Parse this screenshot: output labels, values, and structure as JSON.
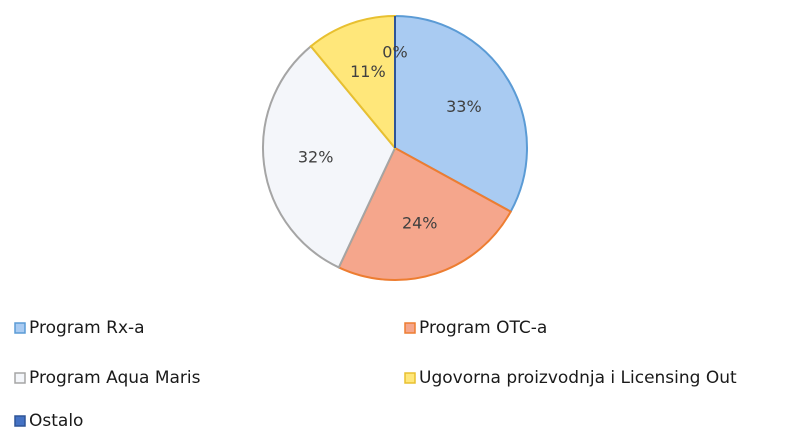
{
  "chart_data": {
    "type": "pie",
    "categories": [
      "Program Rx-a",
      "Program OTC-a",
      "Program Aqua Maris",
      "Ugovorna proizvodnja i Licensing Out",
      "Ostalo"
    ],
    "values": [
      33,
      24,
      32,
      11,
      0
    ],
    "value_labels": [
      "33%",
      "24%",
      "32%",
      "11%",
      "0%"
    ],
    "colors": [
      "#a9cbf2",
      "#f5a68c",
      "#f4f6fa",
      "#ffe77a",
      "#4472c4"
    ],
    "legend": "bottom"
  }
}
